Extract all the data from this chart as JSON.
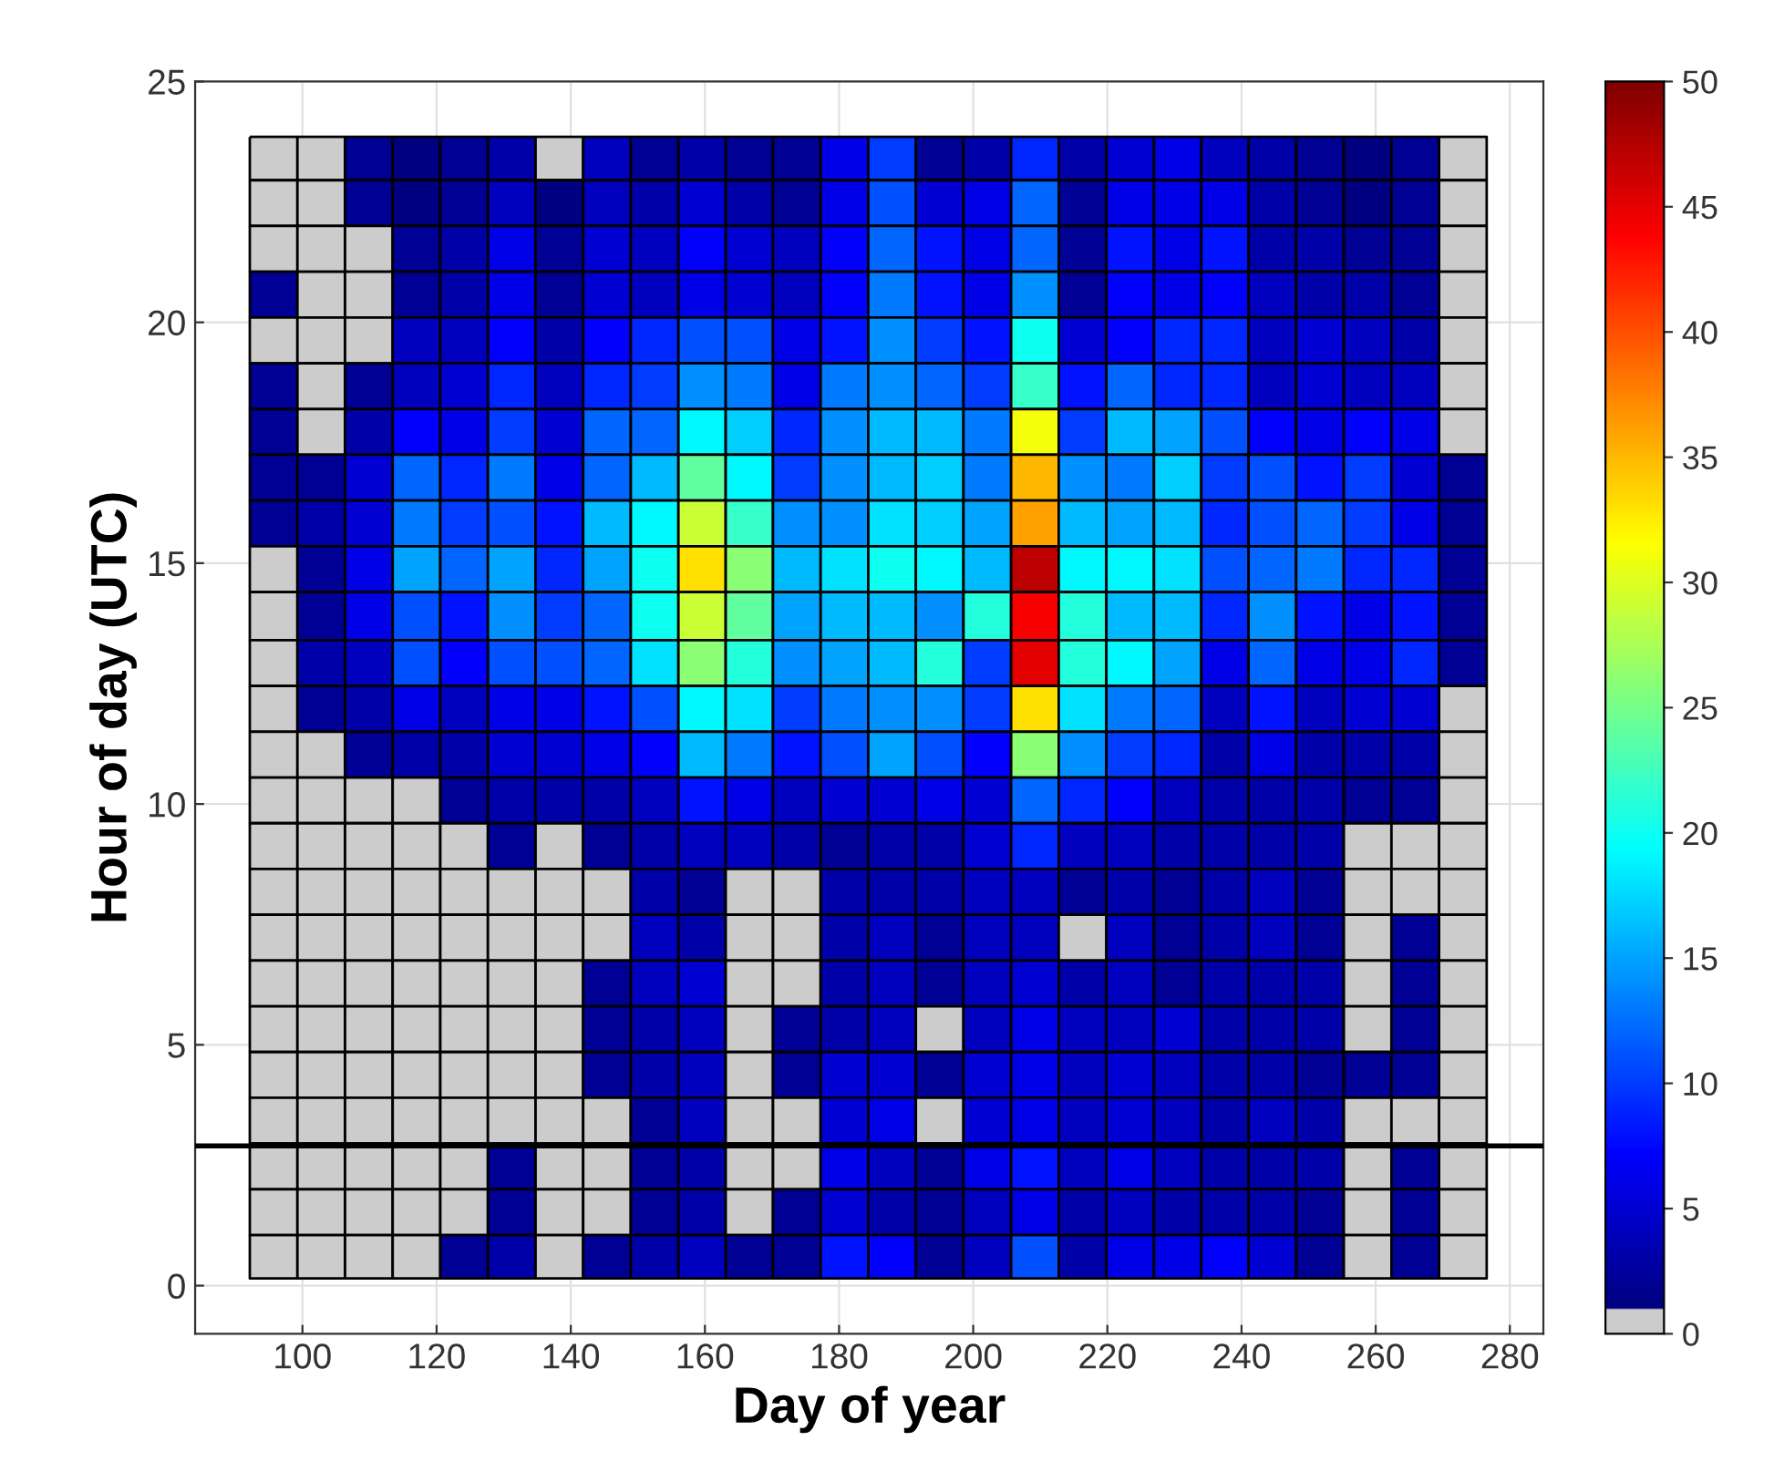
{
  "chart_data": {
    "type": "heatmap",
    "xlabel": "Day of year",
    "ylabel": "Hour of day (UTC)",
    "x": [
      95.7,
      102.8,
      109.9,
      117.0,
      124.1,
      131.2,
      138.3,
      145.4,
      152.5,
      159.6,
      166.6,
      173.7,
      180.8,
      187.9,
      195.0,
      202.1,
      209.2,
      216.3,
      223.4,
      230.5,
      237.5,
      244.6,
      251.7,
      258.8,
      265.9,
      273.0
    ],
    "y": [
      23.4,
      22.5,
      21.5,
      20.6,
      19.6,
      18.7,
      17.7,
      16.8,
      15.8,
      14.9,
      13.9,
      12.9,
      12.0,
      11.0,
      10.1,
      9.1,
      8.2,
      7.2,
      6.3,
      5.3,
      4.4,
      3.4,
      2.5,
      1.5,
      0.6
    ],
    "cells": [
      [
        0,
        0,
        2,
        1,
        2,
        3,
        0,
        4,
        2,
        3,
        2,
        2,
        6,
        10,
        2,
        3,
        9,
        3,
        5,
        6,
        4,
        3,
        2,
        1,
        2,
        0
      ],
      [
        0,
        0,
        2,
        1,
        2,
        4,
        1,
        4,
        3,
        5,
        3,
        2,
        6,
        11,
        5,
        6,
        12,
        2,
        6,
        6,
        6,
        3,
        2,
        1,
        2,
        0
      ],
      [
        0,
        0,
        0,
        2,
        3,
        6,
        2,
        5,
        4,
        7,
        5,
        4,
        7,
        12,
        8,
        6,
        12,
        2,
        8,
        6,
        8,
        3,
        3,
        2,
        2,
        0
      ],
      [
        2,
        0,
        0,
        2,
        3,
        6,
        2,
        5,
        4,
        6,
        5,
        4,
        7,
        13,
        8,
        6,
        14,
        2,
        7,
        6,
        7,
        4,
        3,
        3,
        2,
        0
      ],
      [
        0,
        0,
        0,
        4,
        4,
        7,
        3,
        7,
        9,
        11,
        11,
        6,
        8,
        14,
        10,
        8,
        20,
        5,
        7,
        9,
        9,
        4,
        5,
        4,
        3,
        0
      ],
      [
        2,
        0,
        2,
        4,
        5,
        9,
        4,
        9,
        10,
        14,
        13,
        6,
        13,
        14,
        12,
        10,
        22,
        8,
        12,
        9,
        9,
        4,
        5,
        4,
        4,
        0
      ],
      [
        2,
        0,
        3,
        7,
        6,
        10,
        5,
        12,
        12,
        19,
        17,
        9,
        14,
        16,
        16,
        13,
        31,
        10,
        16,
        15,
        11,
        7,
        6,
        7,
        6,
        0
      ],
      [
        2,
        2,
        5,
        12,
        9,
        13,
        6,
        12,
        16,
        24,
        19,
        10,
        14,
        16,
        17,
        13,
        35,
        14,
        13,
        17,
        10,
        11,
        8,
        10,
        5,
        2
      ],
      [
        2,
        3,
        5,
        13,
        10,
        11,
        8,
        16,
        19,
        29,
        22,
        14,
        14,
        18,
        17,
        15,
        36,
        16,
        15,
        16,
        9,
        11,
        12,
        10,
        6,
        2
      ],
      [
        0,
        2,
        6,
        15,
        12,
        15,
        9,
        15,
        20,
        33,
        26,
        16,
        18,
        20,
        19,
        16,
        47,
        19,
        19,
        18,
        11,
        12,
        13,
        9,
        9,
        2
      ],
      [
        0,
        2,
        6,
        11,
        8,
        14,
        10,
        12,
        20,
        29,
        24,
        15,
        16,
        16,
        14,
        21,
        44,
        21,
        16,
        16,
        9,
        14,
        8,
        6,
        8,
        2
      ],
      [
        0,
        3,
        4,
        11,
        7,
        11,
        11,
        12,
        18,
        26,
        21,
        14,
        15,
        16,
        21,
        10,
        45,
        21,
        19,
        15,
        6,
        12,
        6,
        6,
        9,
        2
      ],
      [
        0,
        2,
        3,
        6,
        4,
        6,
        6,
        8,
        11,
        19,
        18,
        10,
        13,
        14,
        14,
        10,
        33,
        18,
        13,
        12,
        4,
        8,
        4,
        5,
        5,
        0
      ],
      [
        0,
        0,
        2,
        3,
        3,
        5,
        5,
        6,
        7,
        16,
        13,
        8,
        11,
        15,
        11,
        7,
        26,
        14,
        10,
        9,
        3,
        6,
        3,
        3,
        3,
        0
      ],
      [
        0,
        0,
        0,
        0,
        2,
        3,
        3,
        3,
        4,
        8,
        6,
        4,
        5,
        5,
        6,
        5,
        12,
        9,
        7,
        4,
        3,
        3,
        3,
        2,
        2,
        0
      ],
      [
        0,
        0,
        0,
        0,
        0,
        2,
        0,
        2,
        3,
        4,
        4,
        3,
        2,
        3,
        3,
        5,
        9,
        4,
        4,
        3,
        3,
        3,
        3,
        0,
        0,
        0
      ],
      [
        0,
        0,
        0,
        0,
        0,
        0,
        0,
        0,
        3,
        2,
        0,
        0,
        3,
        3,
        3,
        4,
        4,
        2,
        3,
        2,
        3,
        4,
        2,
        0,
        0,
        0
      ],
      [
        0,
        0,
        0,
        0,
        0,
        0,
        0,
        0,
        4,
        3,
        0,
        0,
        3,
        4,
        2,
        4,
        4,
        0,
        4,
        2,
        3,
        4,
        2,
        0,
        2,
        0
      ],
      [
        0,
        0,
        0,
        0,
        0,
        0,
        0,
        2,
        4,
        5,
        0,
        0,
        3,
        4,
        2,
        4,
        5,
        3,
        4,
        2,
        3,
        3,
        3,
        0,
        2,
        0
      ],
      [
        0,
        0,
        0,
        0,
        0,
        0,
        0,
        2,
        3,
        4,
        0,
        2,
        3,
        4,
        0,
        4,
        6,
        4,
        4,
        5,
        3,
        3,
        3,
        0,
        2,
        0
      ],
      [
        0,
        0,
        0,
        0,
        0,
        0,
        0,
        2,
        3,
        4,
        0,
        2,
        5,
        5,
        2,
        5,
        6,
        4,
        5,
        4,
        3,
        3,
        2,
        2,
        2,
        0
      ],
      [
        0,
        0,
        0,
        0,
        0,
        0,
        0,
        0,
        2,
        4,
        0,
        0,
        5,
        6,
        0,
        5,
        6,
        4,
        5,
        4,
        3,
        4,
        3,
        0,
        0,
        0
      ],
      [
        0,
        0,
        0,
        0,
        0,
        2,
        0,
        0,
        2,
        3,
        0,
        0,
        6,
        4,
        2,
        6,
        8,
        4,
        6,
        4,
        3,
        3,
        3,
        0,
        2,
        0
      ],
      [
        0,
        0,
        0,
        0,
        0,
        2,
        0,
        0,
        2,
        3,
        0,
        2,
        5,
        3,
        2,
        4,
        6,
        3,
        4,
        3,
        3,
        3,
        2,
        0,
        2,
        0
      ],
      [
        0,
        0,
        0,
        0,
        2,
        3,
        0,
        2,
        3,
        4,
        2,
        2,
        8,
        7,
        2,
        4,
        11,
        3,
        6,
        6,
        7,
        5,
        2,
        0,
        2,
        0
      ]
    ],
    "colors": [
      "#cccccc",
      "#000080",
      "#0000ff",
      "#0080ff",
      "#00ffff",
      "#80ff80",
      "#ffff00",
      "#ff8000",
      "#ff0000",
      "#800000"
    ],
    "clim": [
      0,
      50
    ],
    "cticks": [
      0,
      5,
      10,
      15,
      20,
      25,
      30,
      35,
      40,
      45,
      50
    ],
    "xlim": [
      84,
      285
    ],
    "xticks": [
      100,
      120,
      140,
      160,
      180,
      200,
      220,
      240,
      260,
      280
    ],
    "ylim": [
      -1,
      25
    ],
    "yticks": [
      0,
      5,
      10,
      15,
      20,
      25
    ],
    "ref_lines": [
      {
        "axis": "y",
        "value": 2.9,
        "color": "#000000",
        "line_style": "solid"
      }
    ],
    "grid": true
  }
}
